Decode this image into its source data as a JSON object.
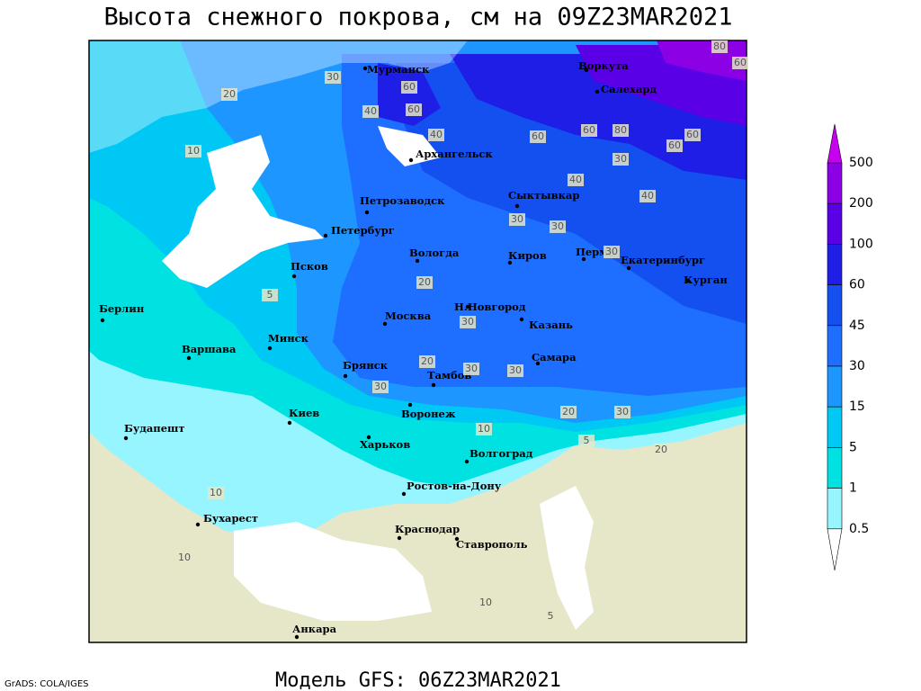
{
  "title": "Высота снежного покрова, см на 09Z23MAR2021",
  "subtitle": "Модель GFS: 06Z23MAR2021",
  "credit": "GrADS: COLA/IGES",
  "cities": [
    "Мурманск",
    "Воркута",
    "Салехард",
    "Архангельск",
    "Сыктывкар",
    "Петрозаводск",
    "Петербург",
    "Вологда",
    "Киров",
    "Пермь",
    "Екатеринбург",
    "Курган",
    "Псков",
    "Н.Новгород",
    "Казань",
    "Москва",
    "Берлин",
    "Варшава",
    "Минск",
    "Брянск",
    "Тамбов",
    "Самара",
    "Воронеж",
    "Киев",
    "Харьков",
    "Будапешт",
    "Волгоград",
    "Ростов-на-Дону",
    "Бухарест",
    "Краснодар",
    "Ставрополь",
    "Анкара"
  ],
  "contour_labels": [
    "60",
    "40",
    "30",
    "20",
    "10",
    "60",
    "40",
    "60",
    "80",
    "60",
    "60",
    "30",
    "40",
    "40",
    "30",
    "30",
    "30",
    "20",
    "30",
    "30",
    "30",
    "20",
    "30",
    "20",
    "30",
    "10",
    "20",
    "5",
    "10",
    "5",
    "10",
    "10",
    "5",
    "80",
    "60",
    "60"
  ],
  "legend": [
    500,
    200,
    100,
    60,
    45,
    30,
    15,
    5,
    1,
    0.5
  ]
}
